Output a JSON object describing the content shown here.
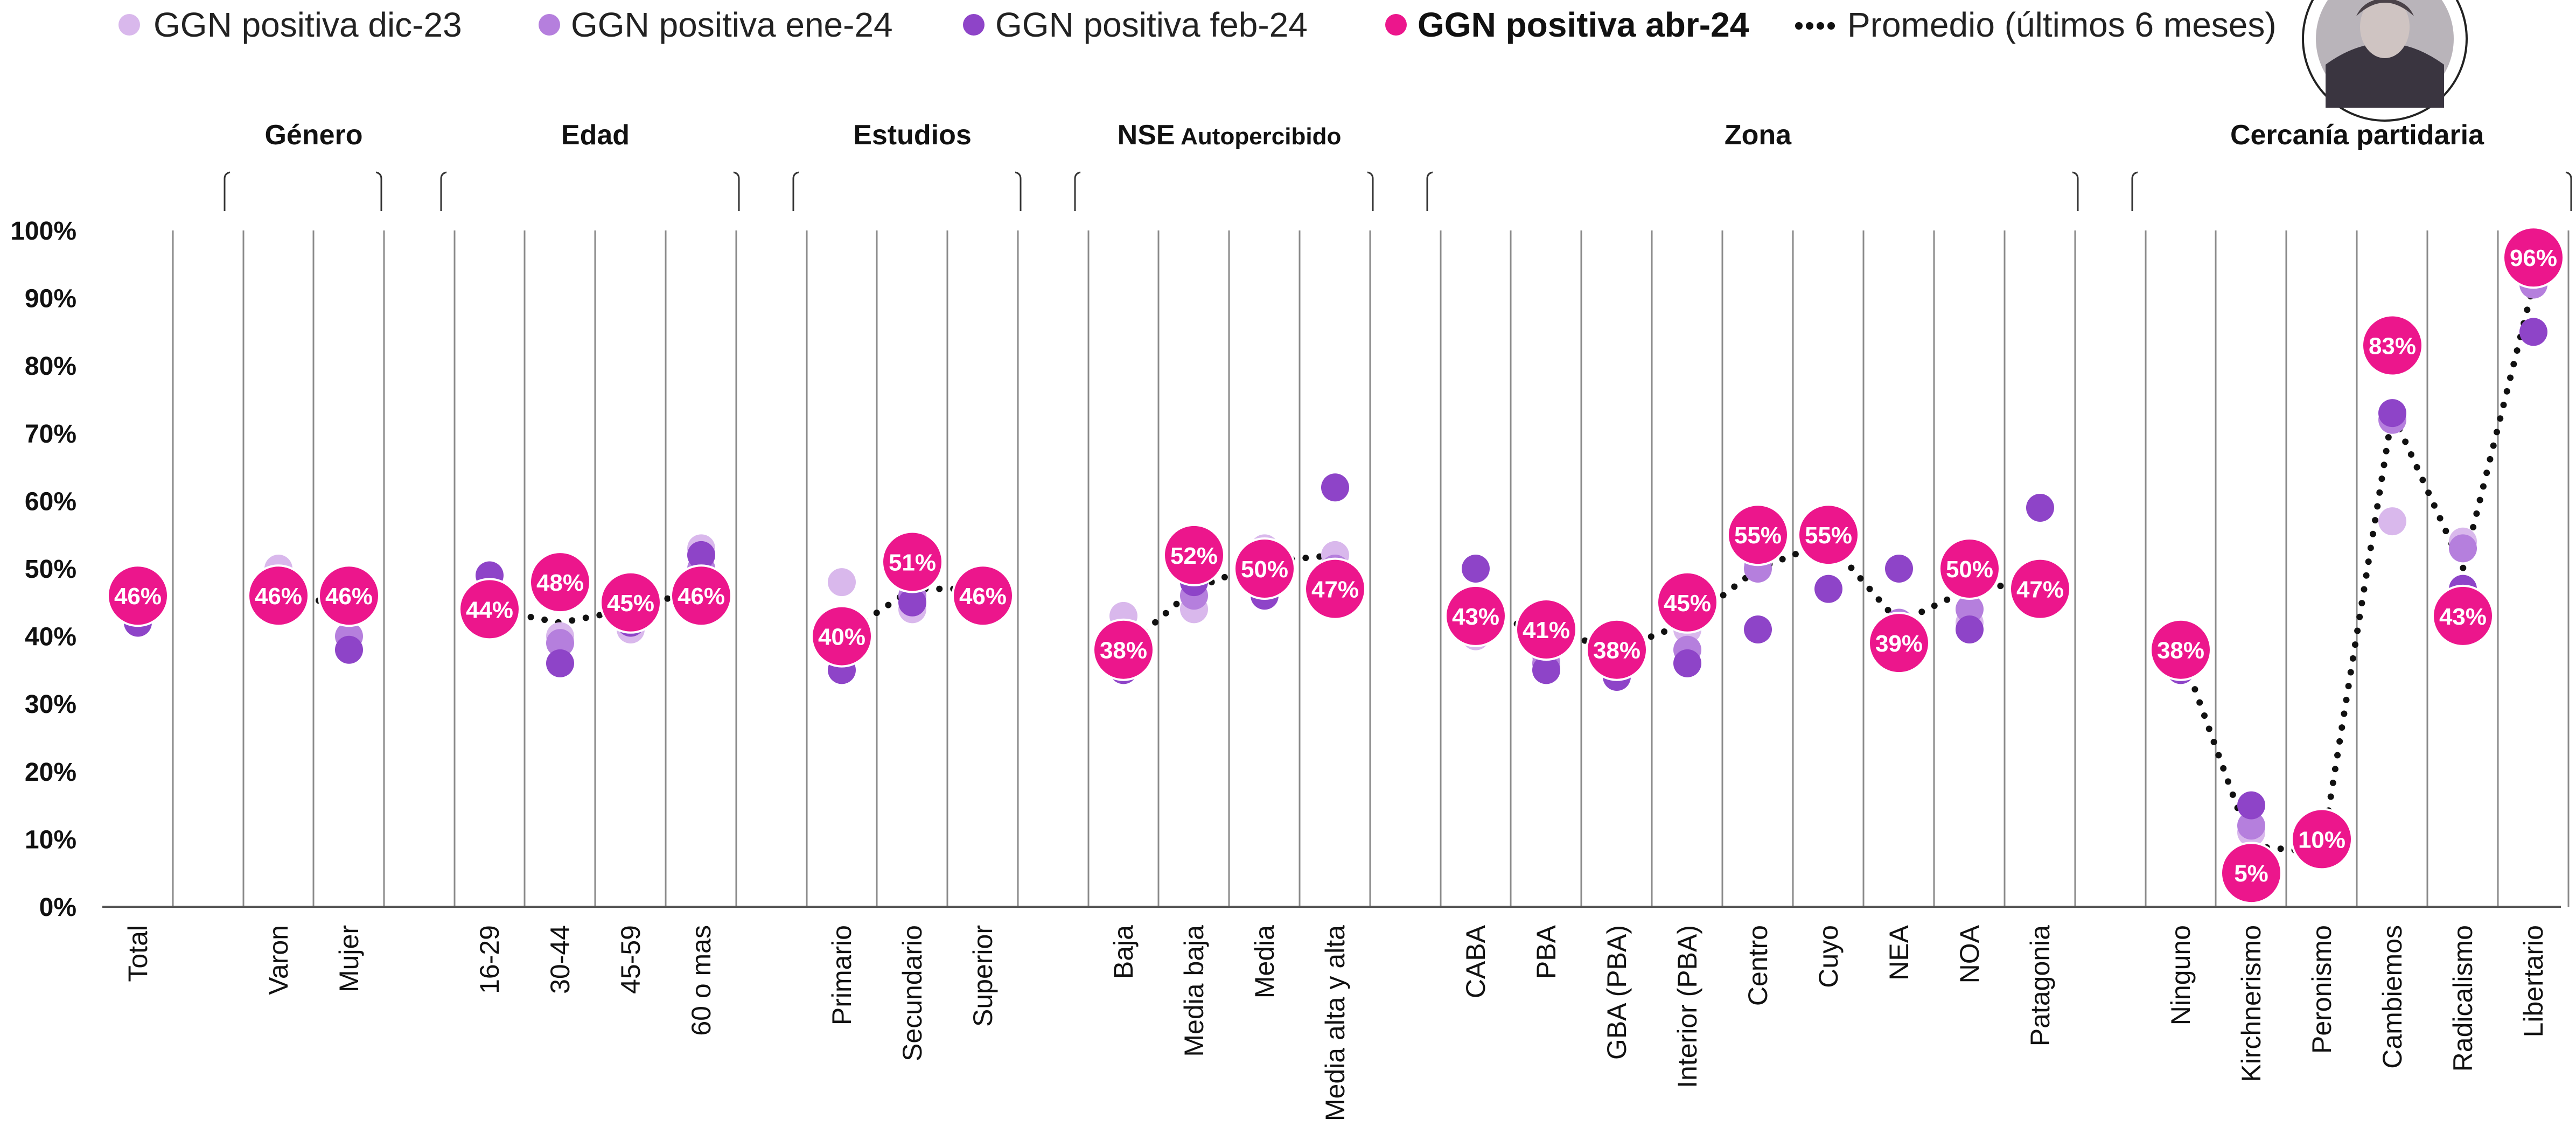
{
  "colors": {
    "dic23": "#d9b8ec",
    "ene24": "#b57fdd",
    "feb24": "#8e44c8",
    "abr24": "#ec168c",
    "promedio": "#111111"
  },
  "legend": [
    {
      "key": "dic23",
      "label": "GGN positiva dic-23",
      "bold": false
    },
    {
      "key": "ene24",
      "label": "GGN positiva ene-24",
      "bold": false
    },
    {
      "key": "feb24",
      "label": "GGN positiva feb-24",
      "bold": false
    },
    {
      "key": "abr24",
      "label": "GGN positiva abr-24",
      "bold": true
    },
    {
      "key": "promedio",
      "label": "Promedio (últimos 6 meses)",
      "bold": false
    }
  ],
  "avatar_icon": "portrait-avatar-icon",
  "chart_data": {
    "type": "scatter",
    "title": "",
    "xlabel": "",
    "ylabel": "",
    "ylim": [
      0,
      100
    ],
    "y_ticks": [
      "0%",
      "10%",
      "20%",
      "30%",
      "40%",
      "50%",
      "60%",
      "70%",
      "80%",
      "90%",
      "100%"
    ],
    "groups": [
      {
        "name": "",
        "sub": "",
        "categories": [
          "Total"
        ]
      },
      {
        "name": "Género",
        "sub": "",
        "categories": [
          "Varon",
          "Mujer"
        ]
      },
      {
        "name": "Edad",
        "sub": "",
        "categories": [
          "16-29",
          "30-44",
          "45-59",
          "60 o mas"
        ]
      },
      {
        "name": "Estudios",
        "sub": "",
        "categories": [
          "Primario",
          "Secundario",
          "Superior"
        ]
      },
      {
        "name": "NSE",
        "sub": "Autopercibido",
        "categories": [
          "Baja",
          "Media baja",
          "Media",
          "Media alta y alta"
        ]
      },
      {
        "name": "Zona",
        "sub": "",
        "categories": [
          "CABA",
          "PBA",
          "GBA (PBA)",
          "Interior (PBA)",
          "Centro",
          "Cuyo",
          "NEA",
          "NOA",
          "Patagonia"
        ]
      },
      {
        "name": "Cercanía partidaria",
        "sub": "",
        "categories": [
          "Ninguno",
          "Kirchnerismo",
          "Peronismo",
          "Cambiemos",
          "Radicalismo",
          "Libertario"
        ]
      }
    ],
    "series": [
      {
        "name": "GGN positiva dic-23",
        "key": "dic23",
        "values": [
          44,
          50,
          44,
          45,
          40,
          41,
          53,
          48,
          44,
          47,
          43,
          44,
          53,
          52,
          40,
          37,
          40,
          41,
          51,
          55,
          40,
          42,
          46,
          38,
          11,
          10,
          57,
          54,
          93
        ]
      },
      {
        "name": "GGN positiva ene-24",
        "key": "ene24",
        "values": [
          43,
          48,
          40,
          43,
          39,
          43,
          50,
          40,
          46,
          46,
          37,
          46,
          52,
          50,
          43,
          36,
          40,
          38,
          50,
          53,
          42,
          44,
          48,
          36,
          12,
          9,
          72,
          53,
          92
        ]
      },
      {
        "name": "GGN positiva feb-24",
        "key": "feb24",
        "values": [
          42,
          46,
          38,
          49,
          36,
          42,
          52,
          35,
          45,
          46,
          35,
          48,
          46,
          62,
          50,
          35,
          34,
          36,
          41,
          47,
          50,
          41,
          59,
          35,
          15,
          8,
          73,
          47,
          85
        ]
      },
      {
        "name": "GGN positiva abr-24",
        "key": "abr24",
        "values": [
          46,
          46,
          46,
          44,
          48,
          45,
          46,
          40,
          51,
          46,
          38,
          52,
          50,
          47,
          43,
          41,
          38,
          45,
          55,
          55,
          39,
          50,
          47,
          38,
          5,
          10,
          83,
          43,
          96
        ],
        "labels": [
          "46%",
          "46%",
          "46%",
          "44%",
          "48%",
          "45%",
          "46%",
          "40%",
          "51%",
          "46%",
          "38%",
          "52%",
          "50%",
          "47%",
          "43%",
          "41%",
          "38%",
          "45%",
          "55%",
          "55%",
          "39%",
          "50%",
          "47%",
          "38%",
          "5%",
          "10%",
          "83%",
          "43%",
          "96%"
        ]
      },
      {
        "name": "Promedio (últimos 6 meses)",
        "key": "promedio",
        "style": "dotted",
        "values": [
          45,
          47,
          44,
          44,
          42,
          44,
          47,
          40,
          47,
          47,
          38,
          47,
          51,
          52,
          43,
          41,
          38,
          42,
          50,
          54,
          42,
          47,
          48,
          38,
          9,
          8,
          73,
          50,
          92
        ]
      }
    ]
  }
}
